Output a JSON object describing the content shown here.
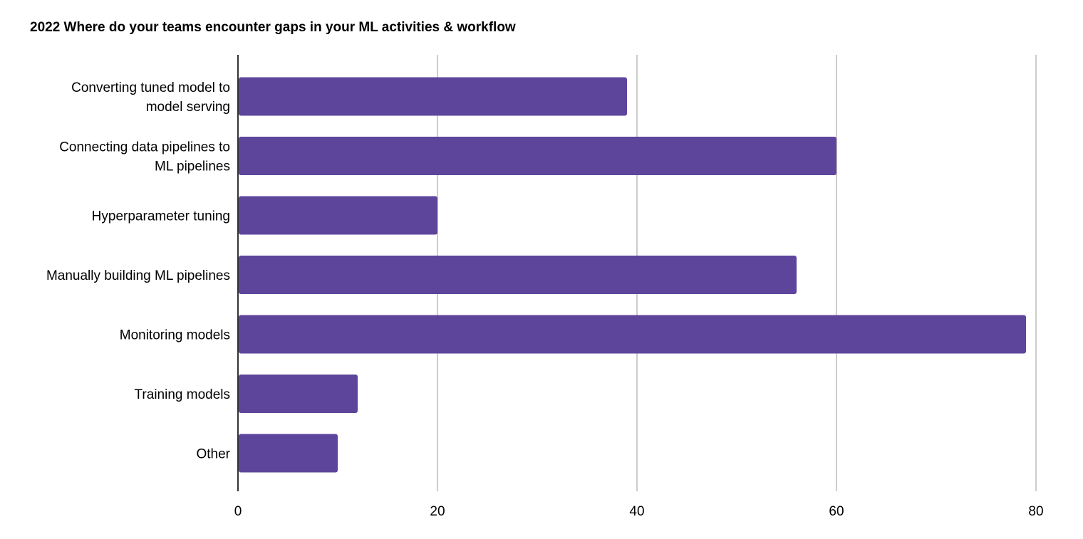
{
  "chart_data": {
    "type": "bar",
    "orientation": "horizontal",
    "title": "2022 Where do your teams encounter gaps in your ML activities & workflow",
    "categories": [
      [
        "Converting tuned model to",
        "model serving"
      ],
      [
        "Connecting data pipelines to",
        "ML pipelines"
      ],
      [
        "Hyperparameter tuning"
      ],
      [
        "Manually building ML pipelines"
      ],
      [
        "Monitoring models"
      ],
      [
        "Training models"
      ],
      [
        "Other"
      ]
    ],
    "values": [
      39,
      60,
      20,
      56,
      79,
      12,
      10
    ],
    "xlim": [
      0,
      80
    ],
    "xticks": [
      "0",
      "20",
      "40",
      "60",
      "80"
    ],
    "xtick_values": [
      0,
      20,
      40,
      60,
      80
    ],
    "xlabel": "",
    "ylabel": "",
    "grid": "vertical",
    "legend": "none",
    "bar_color": "#5e459c",
    "grid_color": "#cccccc",
    "axis_color": "#333333"
  }
}
